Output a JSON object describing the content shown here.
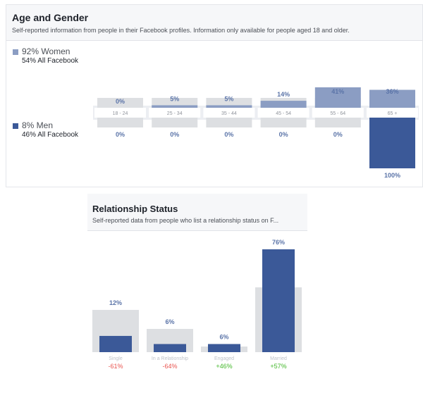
{
  "age_gender": {
    "title": "Age and Gender",
    "subtitle": "Self-reported information from people in their Facebook profiles. Information only available for people aged 18 and older.",
    "women": {
      "label": "92% Women",
      "sub": "54% All Facebook",
      "color": "#8b9dc3"
    },
    "men": {
      "label": "8% Men",
      "sub": "46% All Facebook",
      "color": "#3b5998"
    }
  },
  "relationship": {
    "title": "Relationship Status",
    "subtitle": "Self-reported data from people who list a relationship status on F..."
  },
  "colors": {
    "baseline_gray": "#dddfe2",
    "women_bar": "#8b9dc3",
    "men_bar": "#3b5998",
    "value_text": "#5b74a8",
    "negative": "#e9544f",
    "positive": "#42b72a"
  },
  "chart_data": [
    {
      "type": "bar",
      "title": "Age and Gender",
      "categories": [
        "18 - 24",
        "25 - 34",
        "35 - 44",
        "45 - 54",
        "55 - 64",
        "65 +"
      ],
      "series": [
        {
          "name": "92% Women",
          "values": [
            0,
            5,
            5,
            14,
            41,
            36
          ],
          "labels": [
            "0%",
            "5%",
            "5%",
            "14%",
            "41%",
            "36%"
          ]
        },
        {
          "name": "8% Men",
          "values": [
            0,
            0,
            0,
            0,
            0,
            100
          ],
          "labels": [
            "0%",
            "0%",
            "0%",
            "0%",
            "0%",
            "100%"
          ]
        }
      ]
    },
    {
      "type": "bar",
      "title": "Relationship Status",
      "categories": [
        "Single",
        "In a Relationship",
        "Engaged",
        "Married"
      ],
      "values": [
        12,
        6,
        6,
        76
      ],
      "value_labels": [
        "12%",
        "6%",
        "6%",
        "76%"
      ],
      "comparison": [
        "-61%",
        "-64%",
        "+46%",
        "+57%"
      ]
    }
  ]
}
